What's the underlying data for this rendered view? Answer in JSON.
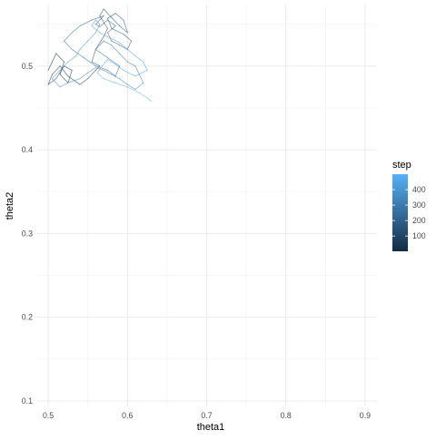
{
  "chart_data": {
    "type": "line",
    "title": "",
    "xlabel": "theta1",
    "ylabel": "theta2",
    "xlim": [
      0.485,
      0.915
    ],
    "ylim": [
      0.0935,
      0.5735
    ],
    "x_ticks": [
      0.5,
      0.6,
      0.7,
      0.8,
      0.9
    ],
    "x_tick_labels": [
      "0.5",
      "0.6",
      "0.7",
      "0.8",
      "0.9"
    ],
    "y_ticks": [
      0.1,
      0.2,
      0.3,
      0.4,
      0.5
    ],
    "y_tick_labels": [
      "0.1",
      "0.2",
      "0.3",
      "0.4",
      "0.5"
    ],
    "grid": true,
    "legend": {
      "title": "step",
      "position": "right",
      "type": "colorbar",
      "range": [
        1,
        500
      ],
      "breaks": [
        100,
        200,
        300,
        400
      ],
      "labels": [
        "100",
        "200",
        "300",
        "400"
      ],
      "low_color": "#132B43",
      "high_color": "#56B1F7"
    },
    "color_by": "step",
    "x": [
      0.5,
      0.505,
      0.51,
      0.52,
      0.515,
      0.525,
      0.53,
      0.52,
      0.51,
      0.5,
      0.505,
      0.515,
      0.525,
      0.54,
      0.55,
      0.56,
      0.565,
      0.555,
      0.56,
      0.57,
      0.575,
      0.565,
      0.57,
      0.58,
      0.59,
      0.6,
      0.595,
      0.585,
      0.575,
      0.58,
      0.595,
      0.605,
      0.6,
      0.59,
      0.58,
      0.575,
      0.585,
      0.575,
      0.565,
      0.56,
      0.57,
      0.555,
      0.54,
      0.53,
      0.52,
      0.53,
      0.545,
      0.56,
      0.575,
      0.585,
      0.59,
      0.575,
      0.56,
      0.57,
      0.58,
      0.59,
      0.6,
      0.61,
      0.615,
      0.62,
      0.61,
      0.6,
      0.59,
      0.58,
      0.57,
      0.56,
      0.55,
      0.54,
      0.525,
      0.515,
      0.505,
      0.515,
      0.525,
      0.535,
      0.54,
      0.55,
      0.56,
      0.565,
      0.56,
      0.555,
      0.565,
      0.575,
      0.59,
      0.6,
      0.61,
      0.62,
      0.625,
      0.61,
      0.595,
      0.585,
      0.575,
      0.568,
      0.562,
      0.57,
      0.585,
      0.6,
      0.615,
      0.625,
      0.63
    ],
    "y": [
      0.495,
      0.505,
      0.515,
      0.505,
      0.49,
      0.48,
      0.495,
      0.5,
      0.485,
      0.478,
      0.49,
      0.5,
      0.488,
      0.478,
      0.485,
      0.495,
      0.5,
      0.505,
      0.52,
      0.535,
      0.545,
      0.56,
      0.568,
      0.558,
      0.548,
      0.54,
      0.555,
      0.563,
      0.557,
      0.545,
      0.538,
      0.53,
      0.52,
      0.525,
      0.53,
      0.54,
      0.548,
      0.555,
      0.547,
      0.55,
      0.56,
      0.555,
      0.548,
      0.54,
      0.53,
      0.52,
      0.51,
      0.5,
      0.495,
      0.488,
      0.5,
      0.51,
      0.52,
      0.53,
      0.525,
      0.515,
      0.505,
      0.5,
      0.49,
      0.48,
      0.472,
      0.478,
      0.485,
      0.49,
      0.495,
      0.498,
      0.492,
      0.485,
      0.48,
      0.475,
      0.485,
      0.495,
      0.505,
      0.512,
      0.52,
      0.53,
      0.54,
      0.55,
      0.555,
      0.548,
      0.54,
      0.535,
      0.528,
      0.52,
      0.512,
      0.505,
      0.495,
      0.488,
      0.495,
      0.502,
      0.508,
      0.5,
      0.492,
      0.485,
      0.48,
      0.475,
      0.468,
      0.462,
      0.458
    ]
  }
}
